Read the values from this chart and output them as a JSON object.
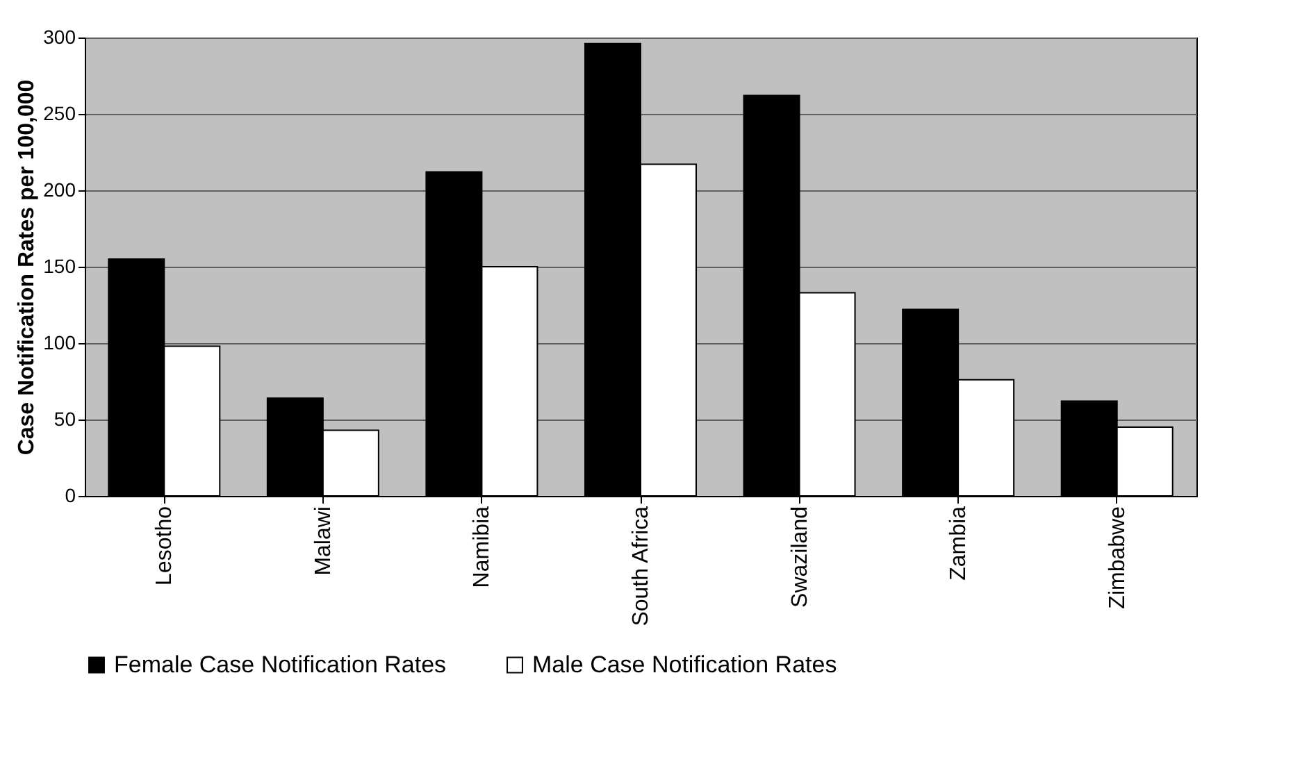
{
  "chart_data": {
    "type": "bar",
    "categories": [
      "Lesotho",
      "Malawi",
      "Namibia",
      "South Africa",
      "Swaziland",
      "Zambia",
      "Zimbabwe"
    ],
    "ylabel": "Case Notification Rates per 100,000",
    "series": [
      {
        "name": "Female Case Notification Rates",
        "color": "#000000",
        "values": [
          155,
          64,
          212,
          296,
          262,
          122,
          62
        ]
      },
      {
        "name": "Male Case Notification Rates",
        "color": "#ffffff",
        "values": [
          98,
          43,
          150,
          217,
          133,
          76,
          45
        ]
      }
    ],
    "ylim": [
      0,
      300
    ],
    "yticks": [
      0,
      50,
      100,
      150,
      200,
      250,
      300
    ],
    "grid": "y",
    "legend": "bottom"
  }
}
